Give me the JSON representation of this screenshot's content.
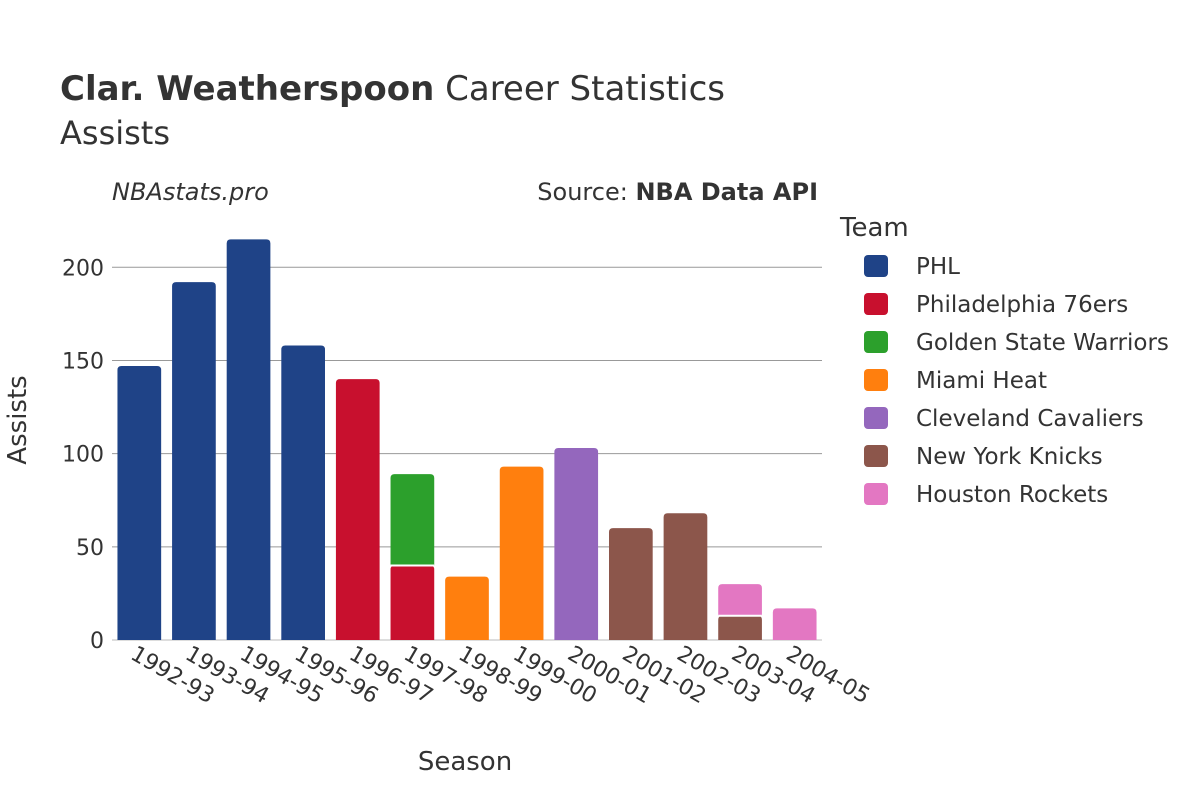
{
  "header": {
    "title_bold": "Clar. Weatherspoon",
    "title_rest": "Career Statistics",
    "subtitle": "Assists",
    "brand": "NBAstats.pro",
    "source_prefix": "Source:",
    "source_name": "NBA Data API"
  },
  "chart_data": {
    "type": "bar",
    "stacked": true,
    "xlabel": "Season",
    "ylabel": "Assists",
    "ylim": [
      0,
      220
    ],
    "yticks": [
      0,
      50,
      100,
      150,
      200
    ],
    "grid": true,
    "legend_title": "Team",
    "legend_position": "right",
    "categories": [
      "1992-93",
      "1993-94",
      "1994-95",
      "1995-96",
      "1996-97",
      "1997-98",
      "1998-99",
      "1999-00",
      "2000-01",
      "2001-02",
      "2002-03",
      "2003-04",
      "2004-05"
    ],
    "series": [
      {
        "name": "PHL",
        "color": "#1f4387",
        "values": [
          147,
          192,
          215,
          158,
          0,
          0,
          0,
          0,
          0,
          0,
          0,
          0,
          0
        ]
      },
      {
        "name": "Philadelphia 76ers",
        "color": "#c8102e",
        "values": [
          0,
          0,
          0,
          0,
          140,
          40,
          0,
          0,
          0,
          0,
          0,
          0,
          0
        ]
      },
      {
        "name": "Golden State Warriors",
        "color": "#2ca02c",
        "values": [
          0,
          0,
          0,
          0,
          0,
          49,
          0,
          0,
          0,
          0,
          0,
          0,
          0
        ]
      },
      {
        "name": "Miami Heat",
        "color": "#ff7f0e",
        "values": [
          0,
          0,
          0,
          0,
          0,
          0,
          34,
          93,
          0,
          0,
          0,
          0,
          0
        ]
      },
      {
        "name": "Cleveland Cavaliers",
        "color": "#9467bd",
        "values": [
          0,
          0,
          0,
          0,
          0,
          0,
          0,
          0,
          103,
          0,
          0,
          0,
          0
        ]
      },
      {
        "name": "New York Knicks",
        "color": "#8c564b",
        "values": [
          0,
          0,
          0,
          0,
          0,
          0,
          0,
          0,
          0,
          60,
          68,
          13,
          0
        ]
      },
      {
        "name": "Houston Rockets",
        "color": "#e377c2",
        "values": [
          0,
          0,
          0,
          0,
          0,
          0,
          0,
          0,
          0,
          0,
          0,
          17,
          17
        ]
      }
    ]
  }
}
